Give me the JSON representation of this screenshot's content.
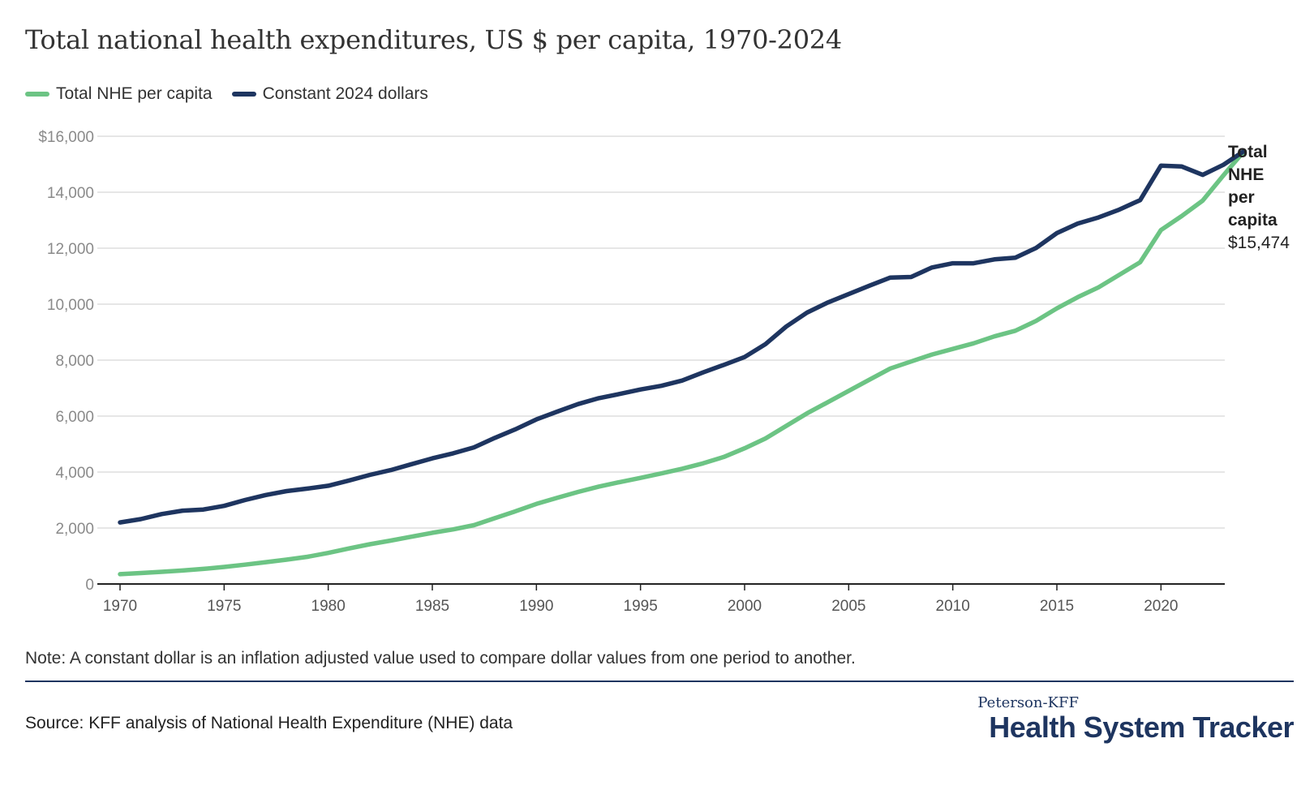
{
  "title": "Total national health expenditures, US $ per capita, 1970-2024",
  "legend": [
    {
      "label": "Total NHE per capita",
      "color": "#6cc484"
    },
    {
      "label": "Constant 2024 dollars",
      "color": "#1e3560"
    }
  ],
  "end_label": {
    "name_lines": [
      "Total",
      "NHE",
      "per",
      "capita"
    ],
    "value": "$15,474"
  },
  "note": "Note: A constant dollar is an inflation adjusted value used to compare dollar values from one period to another.",
  "source": "Source: KFF analysis of National Health Expenditure (NHE) data",
  "brand": {
    "top": "Peterson-KFF",
    "main": "Health System Tracker"
  },
  "chart_data": {
    "type": "line",
    "title": "Total national health expenditures, US $ per capita, 1970-2024",
    "xlabel": "",
    "ylabel": "",
    "xlim": [
      1970,
      2024
    ],
    "ylim": [
      0,
      16000
    ],
    "yticks": [
      0,
      2000,
      4000,
      6000,
      8000,
      10000,
      12000,
      14000,
      16000
    ],
    "ytick_labels": [
      "0",
      "2,000",
      "4,000",
      "6,000",
      "8,000",
      "10,000",
      "12,000",
      "14,000",
      "$16,000"
    ],
    "xticks": [
      1970,
      1975,
      1980,
      1985,
      1990,
      1995,
      2000,
      2005,
      2010,
      2015,
      2020
    ],
    "xtick_labels": [
      "1970",
      "1975",
      "1980",
      "1985",
      "1990",
      "1995",
      "2000",
      "2005",
      "2010",
      "2015",
      "2020"
    ],
    "grid": true,
    "x": [
      1970,
      1971,
      1972,
      1973,
      1974,
      1975,
      1976,
      1977,
      1978,
      1979,
      1980,
      1981,
      1982,
      1983,
      1984,
      1985,
      1986,
      1987,
      1988,
      1989,
      1990,
      1991,
      1992,
      1993,
      1994,
      1995,
      1996,
      1997,
      1998,
      1999,
      2000,
      2001,
      2002,
      2003,
      2004,
      2005,
      2006,
      2007,
      2008,
      2009,
      2010,
      2011,
      2012,
      2013,
      2014,
      2015,
      2016,
      2017,
      2018,
      2019,
      2020,
      2021,
      2022,
      2023,
      2024
    ],
    "series": [
      {
        "name": "Total NHE per capita",
        "color": "#6cc484",
        "values": [
          350,
          390,
          435,
          480,
          540,
          610,
          690,
          780,
          870,
          970,
          1110,
          1270,
          1420,
          1550,
          1690,
          1830,
          1950,
          2100,
          2350,
          2600,
          2860,
          3080,
          3290,
          3480,
          3640,
          3790,
          3950,
          4120,
          4310,
          4540,
          4850,
          5200,
          5650,
          6100,
          6500,
          6900,
          7300,
          7700,
          7950,
          8200,
          8400,
          8600,
          8850,
          9050,
          9400,
          9850,
          10250,
          10600,
          11050,
          11500,
          12650,
          13150,
          13700,
          14600,
          15474
        ]
      },
      {
        "name": "Constant 2024 dollars",
        "color": "#1e3560",
        "values": [
          2200,
          2320,
          2500,
          2620,
          2660,
          2790,
          3000,
          3180,
          3320,
          3410,
          3510,
          3700,
          3900,
          4070,
          4280,
          4490,
          4670,
          4880,
          5220,
          5530,
          5880,
          6160,
          6430,
          6640,
          6790,
          6950,
          7080,
          7270,
          7560,
          7830,
          8110,
          8570,
          9200,
          9700,
          10060,
          10360,
          10660,
          10950,
          10970,
          11310,
          11460,
          11460,
          11600,
          11660,
          12010,
          12540,
          12880,
          13100,
          13380,
          13720,
          14950,
          14920,
          14620,
          14980,
          15474
        ]
      }
    ]
  }
}
